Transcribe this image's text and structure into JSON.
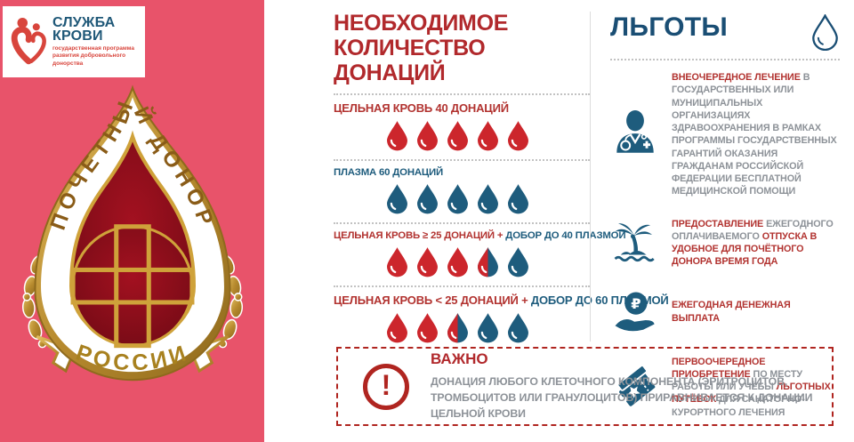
{
  "colors": {
    "panel-pink": "#e8536a",
    "title-red": "#b1292c",
    "benefit-red": "#b23330",
    "drop-red": "#cc262c",
    "drop-blue": "#1e5c7d",
    "navy": "#1a4e74",
    "text-gray": "#8d9298",
    "warn-red": "#b02520",
    "logo-red": "#d8453c",
    "logo-navy": "#1f5878",
    "gold": "#b78a2e"
  },
  "logo": {
    "title_line1": "СЛУЖБА",
    "title_line2": "КРОВИ",
    "subtitle": "государственная программа развития добровольного донорства"
  },
  "badge": {
    "arc_text": "ПОЧЕТНЫЙ ДОНОР",
    "ribbon_text": "РОССИИ"
  },
  "donations": {
    "title_line1": "НЕОБХОДИМОЕ",
    "title_line2": "КОЛИЧЕСТВО ДОНАЦИЙ",
    "rows": [
      {
        "segments": [
          {
            "text": "ЦЕЛЬНАЯ КРОВЬ 40 ДОНАЦИЙ",
            "style": "red"
          }
        ],
        "drops": [
          "red",
          "red",
          "red",
          "red",
          "red"
        ]
      },
      {
        "segments": [
          {
            "text": "ПЛАЗМА 60 ДОНАЦИЙ",
            "style": "blue"
          }
        ],
        "drops": [
          "blue",
          "blue",
          "blue",
          "blue",
          "blue"
        ]
      },
      {
        "segments": [
          {
            "text": "ЦЕЛЬНАЯ КРОВЬ ≥ 25 ДОНАЦИЙ + ",
            "style": "red"
          },
          {
            "text": "ДОБОР ДО 40 ПЛАЗМОЙ",
            "style": "blue"
          }
        ],
        "drops": [
          "red",
          "red",
          "red",
          "half",
          "blue"
        ]
      },
      {
        "segments": [
          {
            "text": "ЦЕЛЬНАЯ КРОВЬ < 25 ДОНАЦИЙ + ",
            "style": "red"
          },
          {
            "text": "ДОБОР ДО 60 ПЛАЗМОЙ",
            "style": "blue"
          }
        ],
        "drops": [
          "red",
          "red",
          "half",
          "blue",
          "blue"
        ]
      }
    ]
  },
  "benefits": {
    "title": "ЛЬГОТЫ",
    "header_icon": "drop-outline-icon",
    "items": [
      {
        "icon": "doctor-icon",
        "segments": [
          {
            "text": "ВНЕОЧЕРЕДНОЕ ЛЕЧЕНИЕ ",
            "style": "red"
          },
          {
            "text": "В ГОСУДАРСТВЕННЫХ ИЛИ МУНИЦИПАЛЬНЫХ ОРГАНИЗАЦИЯХ ЗДРАВООХРАНЕНИЯ В РАМКАХ ПРОГРАММЫ ГОСУДАРСТВЕННЫХ ГАРАНТИЙ ОКАЗАНИЯ ГРАЖДАНАМ РОССИЙСКОЙ ФЕДЕРАЦИИ БЕСПЛАТНОЙ МЕДИЦИНСКОЙ ПОМОЩИ",
            "style": "gray"
          }
        ]
      },
      {
        "icon": "vacation-icon",
        "segments": [
          {
            "text": "ПРЕДОСТАВЛЕНИЕ ",
            "style": "red"
          },
          {
            "text": "ЕЖЕГОДНОГО ОПЛАЧИВАЕМОГО ",
            "style": "gray"
          },
          {
            "text": "ОТПУСКА В УДОБНОЕ ДЛЯ ПОЧЁТНОГО ДОНОРА ВРЕМЯ ГОДА",
            "style": "red"
          }
        ]
      },
      {
        "icon": "payment-icon",
        "segments": [
          {
            "text": "ЕЖЕГОДНАЯ ДЕНЕЖНАЯ ВЫПЛАТА",
            "style": "red"
          }
        ]
      },
      {
        "icon": "tickets-icon",
        "segments": [
          {
            "text": "ПЕРВООЧЕРЕДНОЕ ПРИОБРЕТЕНИЕ ",
            "style": "red"
          },
          {
            "text": "ПО МЕСТУ РАБОТЫ ИЛИ УЧЁБЫ ",
            "style": "gray"
          },
          {
            "text": "ЛЬГОТНЫХ ПУТЁВОК ",
            "style": "red"
          },
          {
            "text": "ДЛЯ САНАТОРНО-КУРОРТНОГО ЛЕЧЕНИЯ",
            "style": "gray"
          }
        ]
      }
    ]
  },
  "important": {
    "title": "ВАЖНО",
    "icon": "exclamation-icon",
    "text": "ДОНАЦИЯ ЛЮБОГО КЛЕТОЧНОГО КОМПОНЕНТА (ЭРИТРОЦИТОВ, ТРОМБОЦИТОВ ИЛИ ГРАНУЛОЦИТОВ) ПРИРАВНИВАЕТСЯ К ДОНАЦИИ ЦЕЛЬНОЙ КРОВИ"
  }
}
